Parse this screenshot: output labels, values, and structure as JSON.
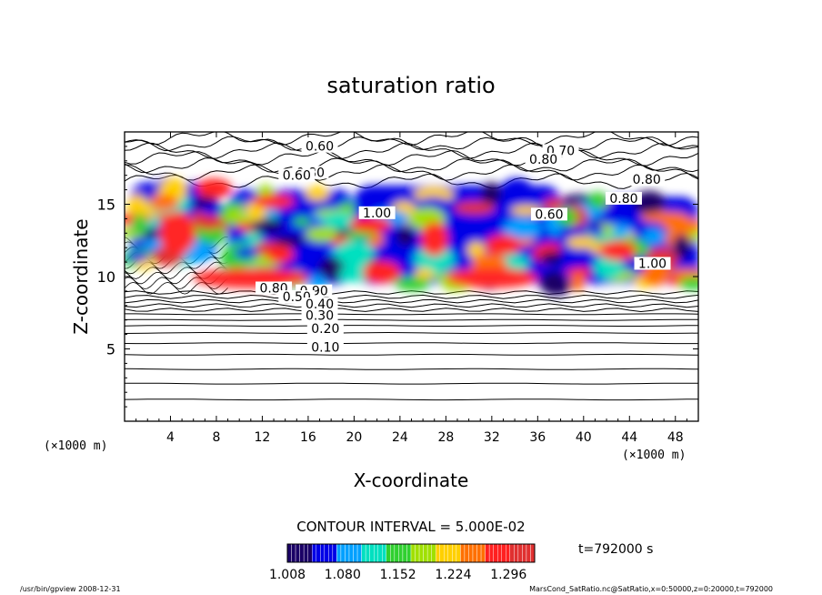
{
  "chart_data": {
    "type": "heatmap",
    "title": "saturation ratio",
    "xlabel": "X-coordinate",
    "ylabel": "Z-coordinate",
    "x_unit": "(×1000 m)",
    "z_unit": "(×1000 m)",
    "xlim": [
      0,
      50
    ],
    "ylim": [
      0,
      20
    ],
    "x_ticks": [
      "4",
      "8",
      "12",
      "16",
      "20",
      "24",
      "28",
      "32",
      "36",
      "40",
      "44",
      "48"
    ],
    "y_ticks": [
      "5",
      "10",
      "15"
    ],
    "contour_labels": [
      "0.60",
      "0.70",
      "0.80",
      "0.80",
      "0.60",
      "0.80",
      "1.00",
      "0.60",
      "0.80",
      "1.00",
      "0.80",
      "0.90",
      "0.50",
      "0.40",
      "0.30",
      "0.20",
      "0.10"
    ],
    "contour_interval_text": "CONTOUR INTERVAL = 5.000E-02",
    "colorbar": {
      "ticks": [
        "1.008",
        "1.080",
        "1.152",
        "1.224",
        "1.296"
      ],
      "range": [
        1.008,
        1.33
      ],
      "colors": [
        "#1a0066",
        "#0000e6",
        "#00a0ff",
        "#00e0c0",
        "#30d030",
        "#a0e000",
        "#ffd000",
        "#ff7000",
        "#ff2020",
        "#e03030"
      ]
    },
    "time_label": "t=792000 s",
    "footer_left": "/usr/bin/gpview   2008-12-31",
    "footer_right": "MarsCond_SatRatio.nc@SatRatio,x=0:50000,z=0:20000,t=792000",
    "saturated_regions": [
      {
        "x": [
          0.5,
          8
        ],
        "z": [
          11,
          16.5
        ]
      },
      {
        "x": [
          9,
          20
        ],
        "z": [
          9.5,
          16
        ]
      },
      {
        "x": [
          20,
          38
        ],
        "z": [
          9.5,
          16.3
        ]
      },
      {
        "x": [
          38,
          50
        ],
        "z": [
          9.5,
          15.5
        ]
      }
    ]
  }
}
